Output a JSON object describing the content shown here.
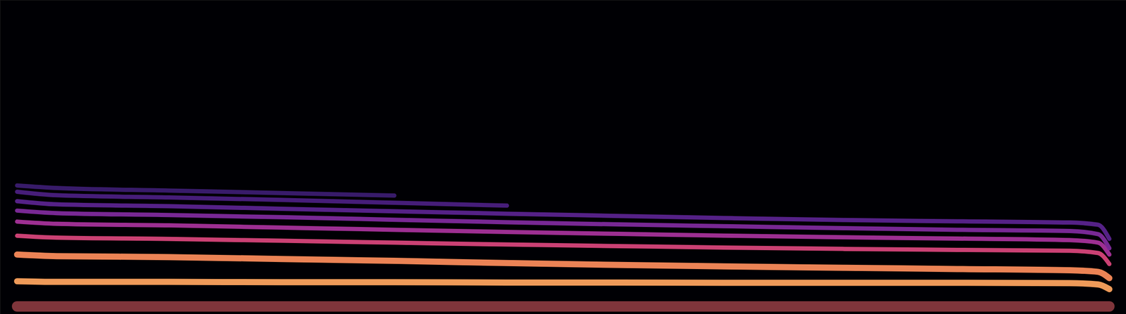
{
  "chart_data": {
    "type": "line",
    "x": [
      1.5,
      5,
      15,
      25,
      35,
      45,
      55,
      65,
      75,
      85,
      95,
      97.5,
      98.5
    ],
    "series": [
      {
        "color": "#e8606a",
        "values": [
          2.5,
          2.5,
          2.5,
          2.5,
          2.5,
          2.5,
          2.5,
          2.5,
          2.5,
          2.5,
          2.5,
          2.5,
          2.5
        ]
      },
      {
        "color": "#fba25e",
        "values": [
          10.5,
          10.3,
          10.3,
          10.2,
          10.2,
          10.1,
          10.1,
          10.0,
          10.0,
          10.0,
          9.9,
          9.5,
          8.0
        ]
      },
      {
        "color": "#f88a5a",
        "values": [
          19.0,
          18.5,
          18.2,
          17.6,
          17.0,
          16.3,
          15.7,
          15.2,
          14.8,
          14.4,
          14.0,
          13.5,
          11.5
        ]
      },
      {
        "color": "#d6457a",
        "values": [
          25.0,
          24.4,
          24.0,
          23.4,
          22.8,
          22.2,
          21.7,
          21.2,
          20.8,
          20.5,
          20.2,
          19.5,
          16.0
        ]
      },
      {
        "color": "#a5329a",
        "values": [
          29.5,
          28.8,
          28.3,
          27.6,
          26.9,
          26.2,
          25.6,
          25.0,
          24.5,
          24.1,
          23.6,
          22.8,
          19.0
        ]
      },
      {
        "color": "#7e2a9c",
        "values": [
          33.0,
          32.2,
          31.6,
          30.9,
          30.1,
          29.3,
          28.6,
          28.0,
          27.4,
          26.9,
          26.5,
          25.5,
          21.0
        ]
      },
      {
        "color": "#5a238e",
        "values": [
          36.0,
          35.0,
          34.4,
          33.6,
          32.8,
          32.0,
          31.3,
          30.6,
          30.0,
          29.6,
          29.2,
          28.5,
          24.0
        ]
      },
      {
        "color": "#4a1f80",
        "values": [
          39.0,
          37.9,
          37.2,
          36.4,
          35.5,
          34.6,
          null,
          null,
          null,
          null,
          null,
          null,
          null
        ]
      },
      {
        "color": "#3b1c70",
        "values": [
          41.0,
          40.2,
          39.4,
          38.6,
          37.8,
          null,
          null,
          null,
          null,
          null,
          null,
          null,
          null
        ]
      }
    ],
    "xlim": [
      0,
      100
    ],
    "ylim": [
      0,
      100
    ],
    "grid": false,
    "tick_labels": false
  }
}
